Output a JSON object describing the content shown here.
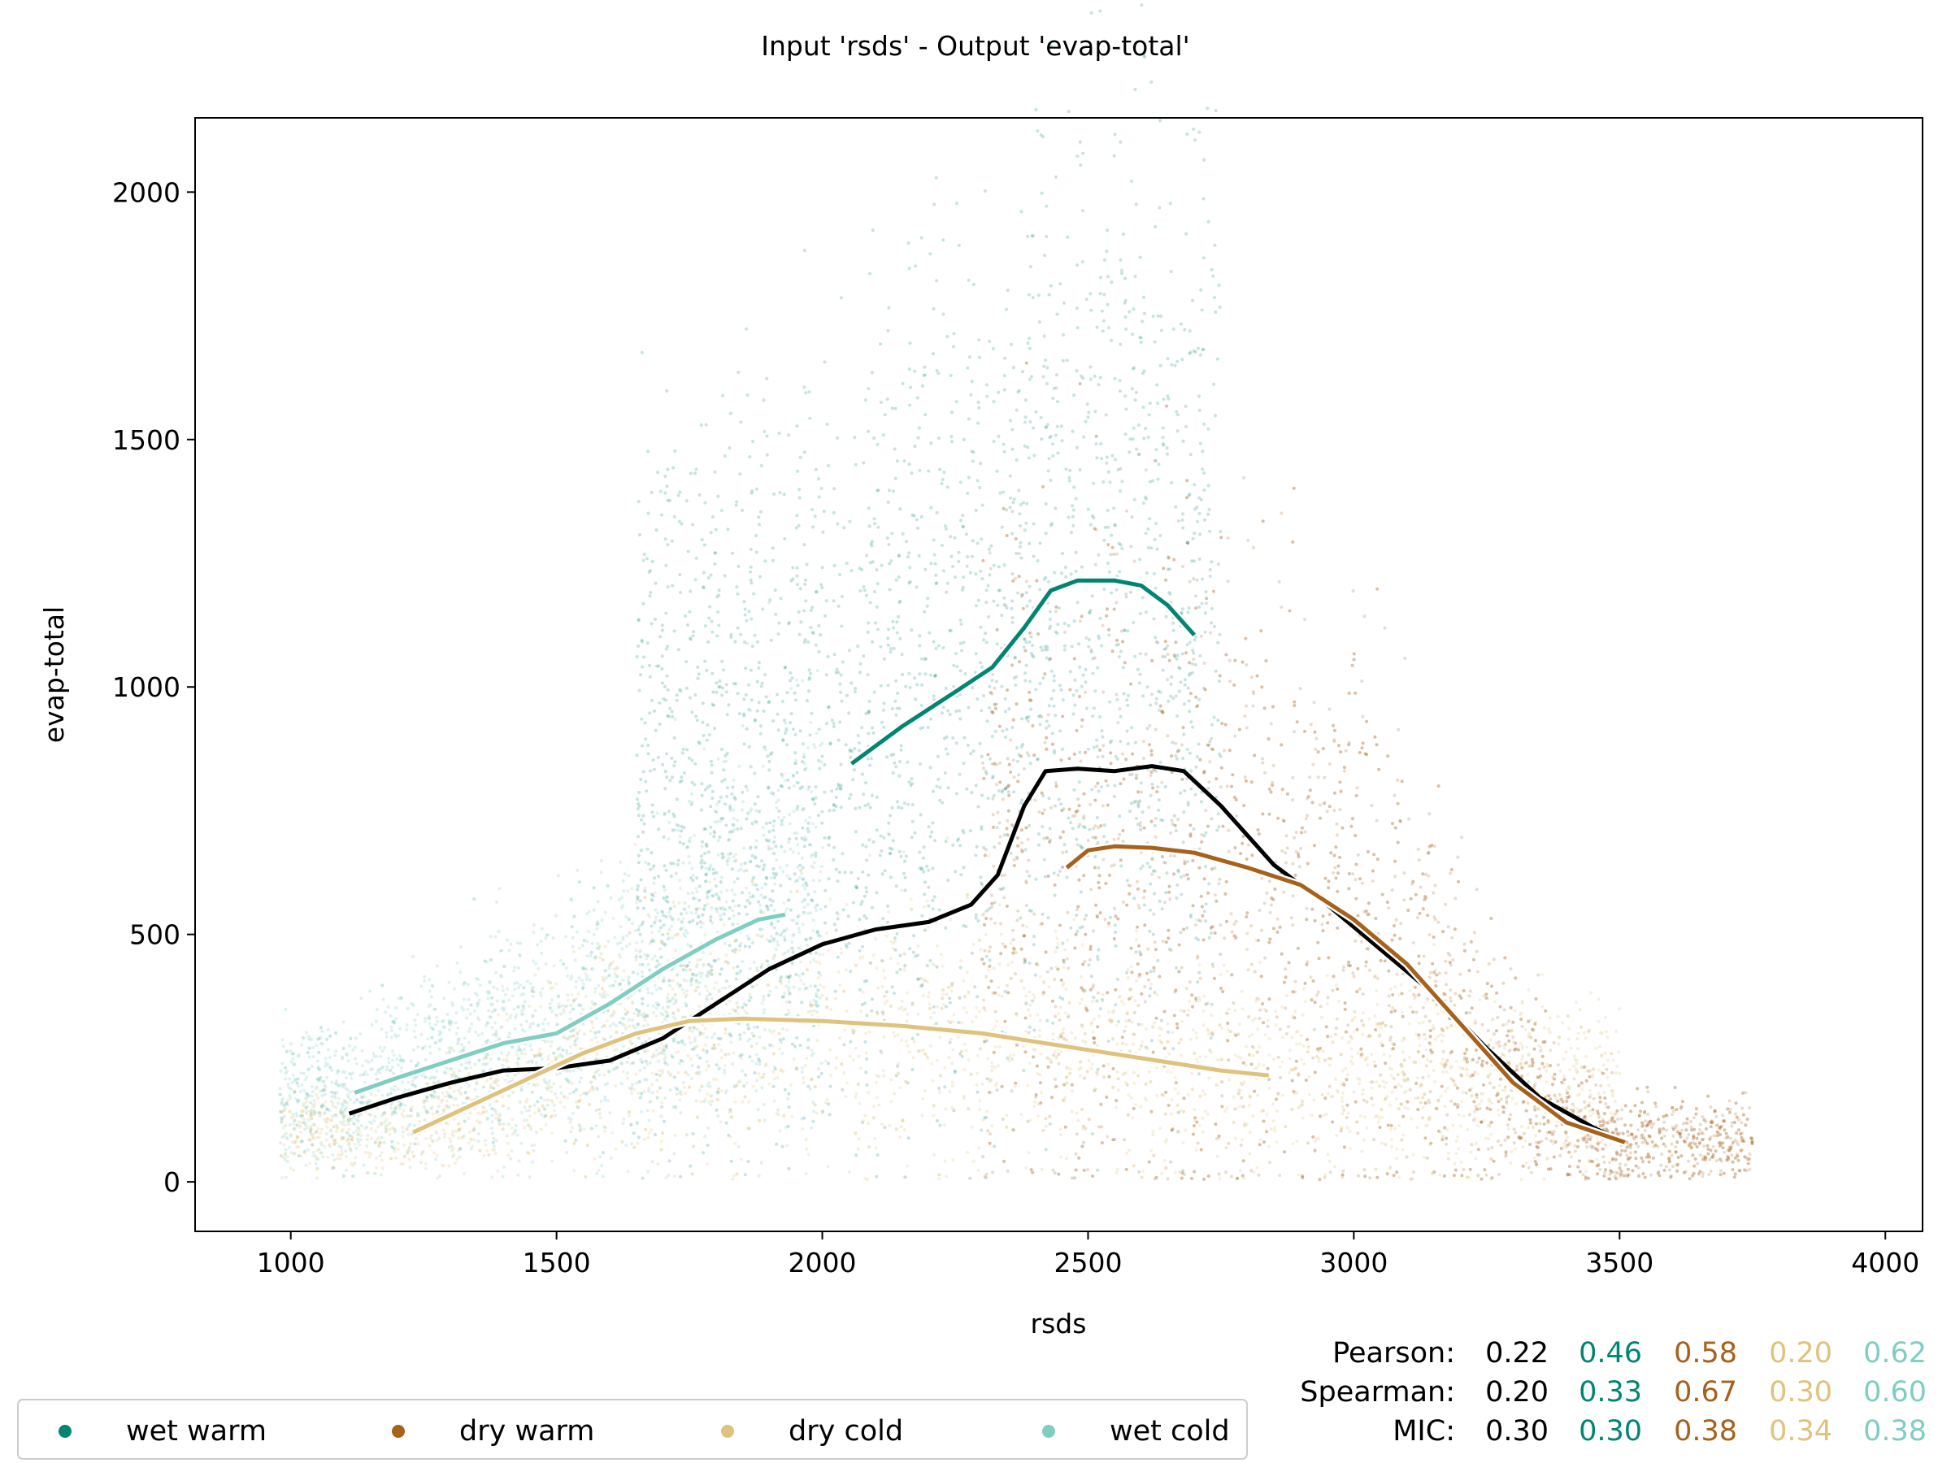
{
  "chart_data": {
    "type": "scatter",
    "title": "Input 'rsds' - Output 'evap-total'",
    "xlabel": "rsds",
    "ylabel": "evap-total",
    "xlim": [
      820,
      4070
    ],
    "ylim": [
      -100,
      2150
    ],
    "xticks": [
      1000,
      1500,
      2000,
      2500,
      3000,
      3500,
      4000
    ],
    "yticks": [
      0,
      500,
      1000,
      1500,
      2000
    ],
    "grid": false,
    "legend_position": "bottom-left",
    "series": [
      {
        "name": "wet warm",
        "color": "#018571",
        "trend": [
          [
            2055,
            845
          ],
          [
            2150,
            920
          ],
          [
            2250,
            990
          ],
          [
            2320,
            1040
          ],
          [
            2380,
            1120
          ],
          [
            2430,
            1195
          ],
          [
            2480,
            1215
          ],
          [
            2550,
            1215
          ],
          [
            2600,
            1205
          ],
          [
            2650,
            1165
          ],
          [
            2700,
            1105
          ]
        ]
      },
      {
        "name": "dry warm",
        "color": "#a6611a",
        "trend": [
          [
            2460,
            635
          ],
          [
            2500,
            670
          ],
          [
            2550,
            678
          ],
          [
            2620,
            675
          ],
          [
            2700,
            665
          ],
          [
            2800,
            635
          ],
          [
            2900,
            600
          ],
          [
            3000,
            530
          ],
          [
            3100,
            440
          ],
          [
            3200,
            320
          ],
          [
            3300,
            200
          ],
          [
            3400,
            120
          ],
          [
            3510,
            80
          ]
        ]
      },
      {
        "name": "dry cold",
        "color": "#dfc27d",
        "trend": [
          [
            1230,
            100
          ],
          [
            1350,
            160
          ],
          [
            1450,
            210
          ],
          [
            1550,
            260
          ],
          [
            1650,
            300
          ],
          [
            1750,
            325
          ],
          [
            1850,
            330
          ],
          [
            2000,
            325
          ],
          [
            2150,
            315
          ],
          [
            2300,
            300
          ],
          [
            2450,
            275
          ],
          [
            2600,
            250
          ],
          [
            2750,
            225
          ],
          [
            2840,
            215
          ]
        ]
      },
      {
        "name": "wet cold",
        "color": "#80cdc1",
        "trend": [
          [
            1120,
            180
          ],
          [
            1200,
            210
          ],
          [
            1300,
            245
          ],
          [
            1400,
            280
          ],
          [
            1500,
            300
          ],
          [
            1600,
            360
          ],
          [
            1700,
            430
          ],
          [
            1800,
            490
          ],
          [
            1880,
            530
          ],
          [
            1930,
            540
          ]
        ]
      }
    ],
    "overall_trend": [
      [
        1110,
        138
      ],
      [
        1200,
        170
      ],
      [
        1300,
        200
      ],
      [
        1400,
        225
      ],
      [
        1500,
        230
      ],
      [
        1600,
        245
      ],
      [
        1700,
        290
      ],
      [
        1800,
        360
      ],
      [
        1900,
        430
      ],
      [
        2000,
        480
      ],
      [
        2100,
        510
      ],
      [
        2200,
        525
      ],
      [
        2280,
        560
      ],
      [
        2330,
        620
      ],
      [
        2380,
        760
      ],
      [
        2420,
        830
      ],
      [
        2480,
        835
      ],
      [
        2550,
        830
      ],
      [
        2620,
        840
      ],
      [
        2680,
        830
      ],
      [
        2750,
        760
      ],
      [
        2850,
        640
      ],
      [
        2950,
        560
      ],
      [
        3050,
        470
      ],
      [
        3150,
        380
      ],
      [
        3250,
        270
      ],
      [
        3350,
        170
      ],
      [
        3450,
        110
      ],
      [
        3510,
        80
      ]
    ],
    "stats": {
      "rows": [
        {
          "label": "Pearson:",
          "values": [
            "0.22",
            "0.46",
            "0.58",
            "0.20",
            "0.62"
          ]
        },
        {
          "label": "Spearman:",
          "values": [
            "0.20",
            "0.33",
            "0.67",
            "0.30",
            "0.60"
          ]
        },
        {
          "label": "MIC:",
          "values": [
            "0.30",
            "0.30",
            "0.38",
            "0.34",
            "0.38"
          ]
        }
      ],
      "colors": [
        "#000000",
        "#018571",
        "#a6611a",
        "#dfc27d",
        "#80cdc1"
      ]
    }
  }
}
